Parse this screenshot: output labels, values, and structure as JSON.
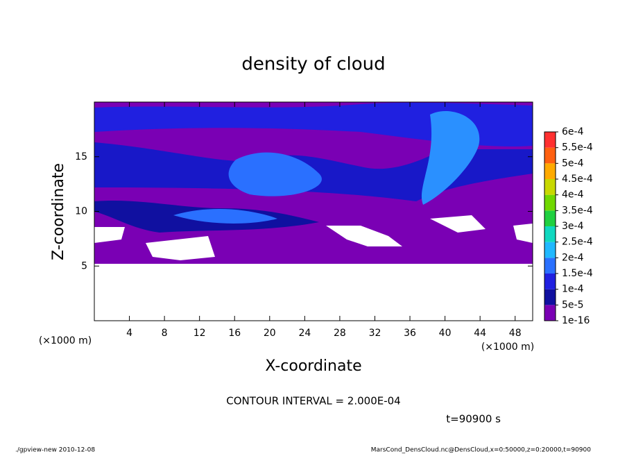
{
  "chart_data": {
    "type": "contour",
    "title": "density of cloud",
    "x_label": "X-coordinate",
    "y_label": "Z-coordinate",
    "y_unit": "(×1000 m)",
    "x_unit": "(×1000 m)",
    "xlim": [
      0,
      50
    ],
    "ylim": [
      0,
      20
    ],
    "xticks": [
      4,
      8,
      12,
      16,
      20,
      24,
      28,
      32,
      36,
      40,
      44,
      48
    ],
    "yticks": [
      5,
      10,
      15
    ],
    "colorbar": {
      "levels": [
        {
          "value": 1e-16,
          "label": "1e-16"
        },
        {
          "value": 5e-05,
          "label": "5e-5"
        },
        {
          "value": 0.0001,
          "label": "1e-4"
        },
        {
          "value": 0.00015,
          "label": "1.5e-4"
        },
        {
          "value": 0.0002,
          "label": "2e-4"
        },
        {
          "value": 0.00025,
          "label": "2.5e-4"
        },
        {
          "value": 0.0003,
          "label": "3e-4"
        },
        {
          "value": 0.00035,
          "label": "3.5e-4"
        },
        {
          "value": 0.0004,
          "label": "4e-4"
        },
        {
          "value": 0.00045,
          "label": "4.5e-4"
        },
        {
          "value": 0.0005,
          "label": "5e-4"
        },
        {
          "value": 0.00055,
          "label": "5.5e-4"
        },
        {
          "value": 0.0006,
          "label": "6e-4"
        }
      ],
      "colors": [
        "#7a00b4",
        "#1010a0",
        "#2020e0",
        "#2a70ff",
        "#20b8ff",
        "#10d8c0",
        "#20d040",
        "#70d800",
        "#c8d800",
        "#ffaa00",
        "#ff6010",
        "#ff3030",
        "#ff8888"
      ]
    },
    "contour_interval": "CONTOUR INTERVAL = 2.000E-04",
    "time": "t=90900 s",
    "footer_left": "./gpview-new  2010-12-08",
    "footer_right": "MarsCond_DensCloud.nc@DensCloud,x=0:50000,z=0:20000,t=90900"
  }
}
